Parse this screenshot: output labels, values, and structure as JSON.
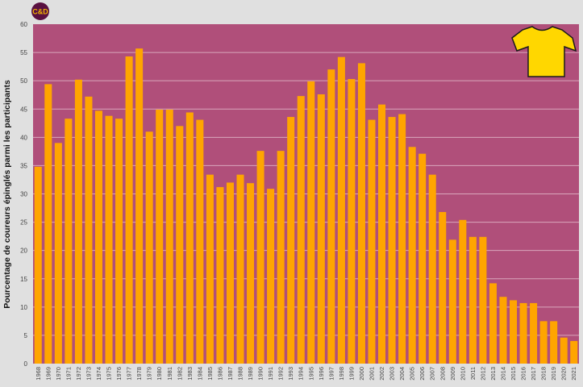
{
  "logo": {
    "text": "C&D",
    "bg": "#5a1040",
    "fg": "#f0b400"
  },
  "icon": {
    "name": "yellow-jersey-icon",
    "color": "#ffd700"
  },
  "colors": {
    "plot_bg": "#b04f7a",
    "bar": "#ffa500",
    "grid": "#d9a6bc",
    "page_bg": "#e0e0e0"
  },
  "chart_data": {
    "type": "bar",
    "title": "",
    "xlabel": "",
    "ylabel": "Pourcentage de coureurs épinglés parmi les participants",
    "ylim": [
      0,
      60
    ],
    "yticks": [
      0,
      5,
      10,
      15,
      20,
      25,
      30,
      35,
      40,
      45,
      50,
      55,
      60
    ],
    "grid": true,
    "categories": [
      "1968",
      "1969",
      "1970",
      "1971",
      "1972",
      "1973",
      "1974",
      "1975",
      "1976",
      "1977",
      "1978",
      "1979",
      "1980",
      "1981",
      "1982",
      "1983",
      "1984",
      "1985",
      "1986",
      "1987",
      "1988",
      "1989",
      "1990",
      "1991",
      "1992",
      "1993",
      "1994",
      "1995",
      "1996",
      "1997",
      "1998",
      "1999",
      "2000",
      "2001",
      "2002",
      "2003",
      "2004",
      "2005",
      "2006",
      "2007",
      "2008",
      "2009",
      "2010",
      "2011",
      "2012",
      "2013",
      "2014",
      "2015",
      "2016",
      "2017",
      "2018",
      "2019",
      "2020",
      "2021"
    ],
    "values": [
      34.8,
      49.4,
      39.0,
      43.3,
      50.2,
      47.2,
      44.7,
      43.8,
      43.3,
      54.3,
      55.7,
      41.0,
      44.9,
      44.9,
      42.0,
      44.4,
      43.1,
      33.4,
      31.2,
      32.0,
      33.4,
      31.9,
      37.6,
      30.9,
      37.6,
      43.6,
      47.3,
      49.9,
      47.6,
      52.0,
      54.2,
      50.3,
      53.1,
      43.1,
      45.8,
      43.6,
      44.1,
      38.3,
      37.1,
      33.4,
      26.8,
      21.9,
      25.4,
      22.4,
      22.4,
      14.2,
      11.8,
      11.2,
      10.7,
      10.7,
      7.5,
      7.5,
      4.6,
      4.0
    ]
  }
}
